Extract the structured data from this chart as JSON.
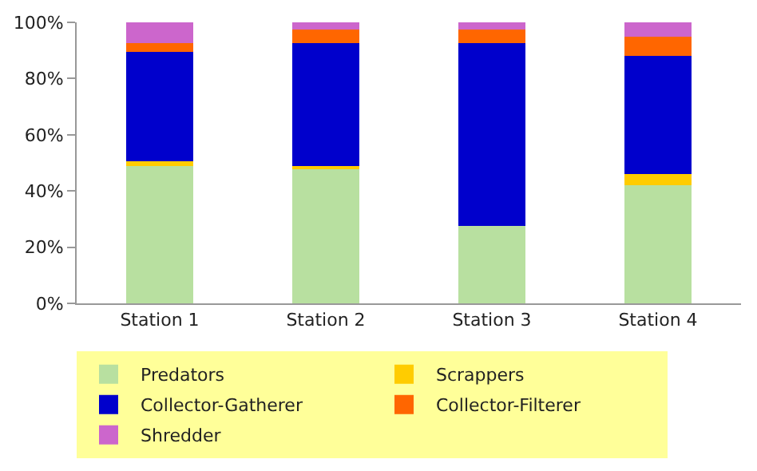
{
  "chart_data": {
    "type": "bar",
    "stacked": true,
    "categories": [
      "Station 1",
      "Station 2",
      "Station 3",
      "Station 4"
    ],
    "series": [
      {
        "name": "Predators",
        "color": "#b8e0a0",
        "values": [
          49,
          48,
          27.5,
          42
        ]
      },
      {
        "name": "Scrappers",
        "color": "#ffcc00",
        "values": [
          1.5,
          1,
          0,
          4
        ]
      },
      {
        "name": "Collector-Gatherer",
        "color": "#0000cc",
        "values": [
          39,
          43.5,
          65,
          42
        ]
      },
      {
        "name": "Collector-Filterer",
        "color": "#ff6600",
        "values": [
          3,
          5,
          5,
          7
        ]
      },
      {
        "name": "Shredder",
        "color": "#cc66cc",
        "values": [
          7.5,
          2.5,
          2.5,
          5
        ]
      }
    ],
    "ylim": [
      0,
      100
    ],
    "yticks": [
      {
        "value": 0,
        "label": "0%"
      },
      {
        "value": 20,
        "label": "20%"
      },
      {
        "value": 40,
        "label": "40%"
      },
      {
        "value": 60,
        "label": "60%"
      },
      {
        "value": 80,
        "label": "80%"
      },
      {
        "value": 100,
        "label": "100%"
      }
    ],
    "legend": "bottom"
  }
}
